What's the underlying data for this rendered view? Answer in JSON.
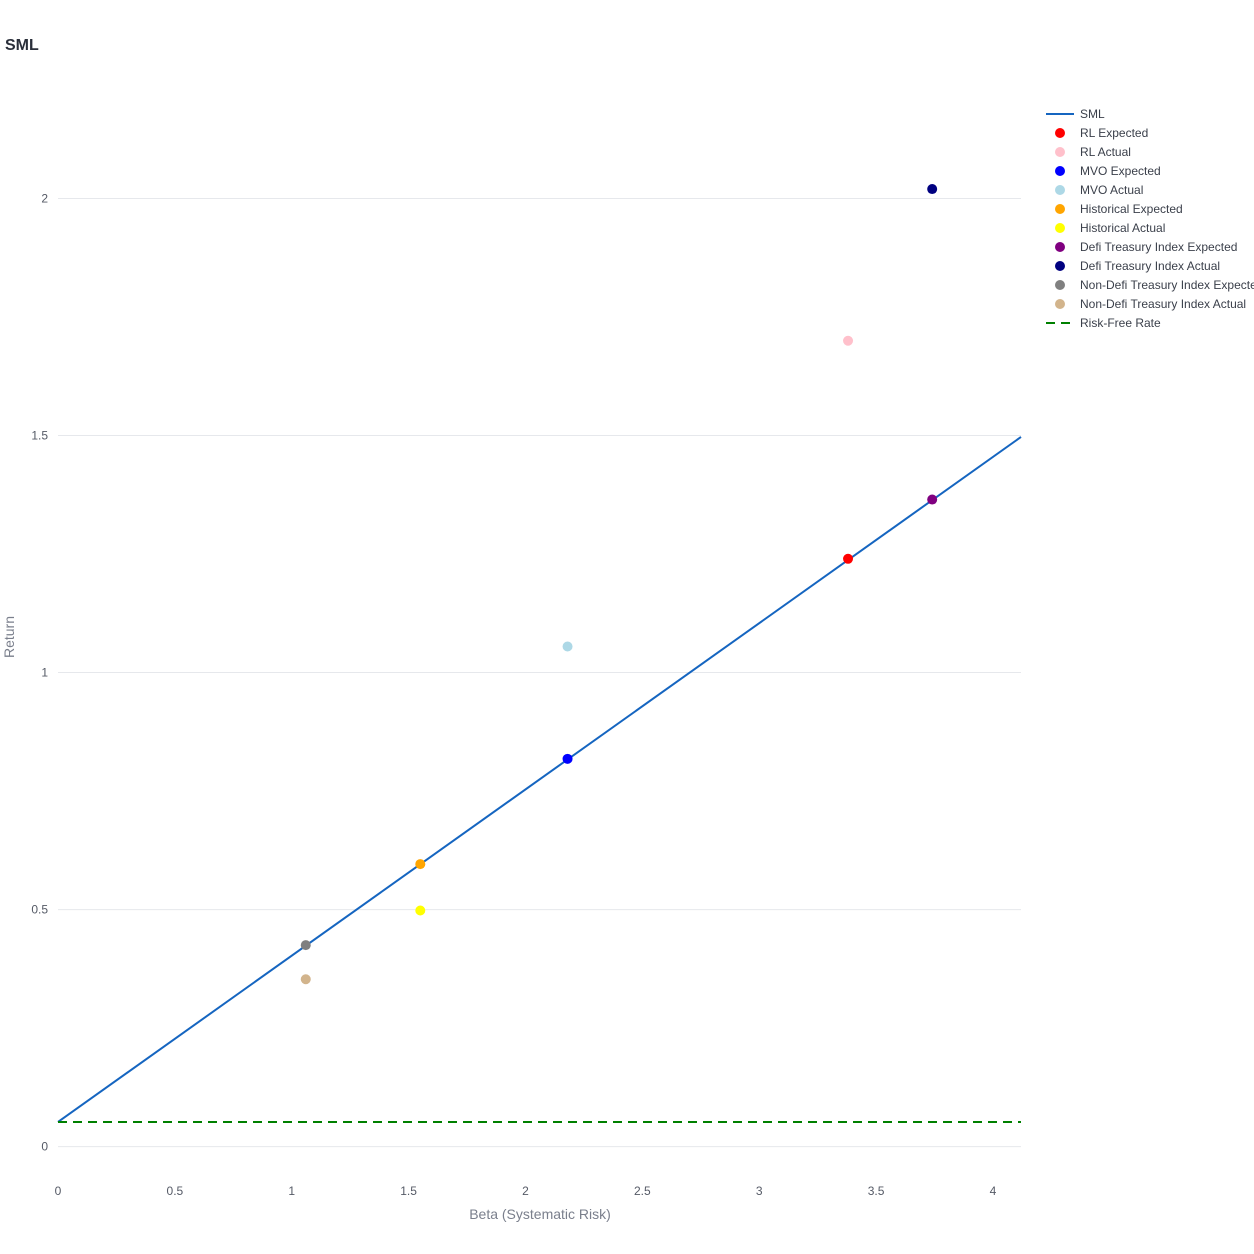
{
  "chart_data": {
    "type": "scatter",
    "title": "SML",
    "xlabel": "Beta (Systematic Risk)",
    "ylabel": "Return",
    "xlim": [
      0,
      4.12
    ],
    "ylim": [
      -0.1,
      2.25
    ],
    "x_ticks": [
      0,
      0.5,
      1,
      1.5,
      2,
      2.5,
      3,
      3.5,
      4
    ],
    "x_tick_labels": [
      "0",
      "0.5",
      "1",
      "1.5",
      "2",
      "2.5",
      "3",
      "3.5",
      "4"
    ],
    "y_ticks": [
      0,
      0.5,
      1,
      1.5,
      2
    ],
    "y_tick_labels": [
      "0",
      "0.5",
      "1",
      "1.5",
      "2"
    ],
    "grid": "horizontal",
    "legend_position": "right",
    "series": [
      {
        "name": "SML",
        "kind": "line",
        "color": "#1565c0",
        "x": [
          0,
          4.12
        ],
        "y": [
          0.052,
          1.497
        ]
      },
      {
        "name": "RL Expected",
        "kind": "marker",
        "color": "#ff0000",
        "x": [
          3.38
        ],
        "y": [
          1.24
        ]
      },
      {
        "name": "RL Actual",
        "kind": "marker",
        "color": "#ffc0cb",
        "x": [
          3.38
        ],
        "y": [
          1.7
        ]
      },
      {
        "name": "MVO Expected",
        "kind": "marker",
        "color": "#0000ff",
        "x": [
          2.18
        ],
        "y": [
          0.818
        ]
      },
      {
        "name": "MVO Actual",
        "kind": "marker",
        "color": "#add8e6",
        "x": [
          2.18
        ],
        "y": [
          1.055
        ]
      },
      {
        "name": "Historical Expected",
        "kind": "marker",
        "color": "#ffa500",
        "x": [
          1.55
        ],
        "y": [
          0.596
        ]
      },
      {
        "name": "Historical Actual",
        "kind": "marker",
        "color": "#ffff00",
        "x": [
          1.55
        ],
        "y": [
          0.498
        ]
      },
      {
        "name": "Defi Treasury Index Expected",
        "kind": "marker",
        "color": "#800080",
        "x": [
          3.74
        ],
        "y": [
          1.365
        ]
      },
      {
        "name": "Defi Treasury Index Actual",
        "kind": "marker",
        "color": "#000080",
        "x": [
          3.74
        ],
        "y": [
          2.02
        ]
      },
      {
        "name": "Non-Defi Treasury Index Expected",
        "kind": "marker",
        "color": "#808080",
        "x": [
          1.06
        ],
        "y": [
          0.425
        ]
      },
      {
        "name": "Non-Defi Treasury Index Actual",
        "kind": "marker",
        "color": "#d2b48c",
        "x": [
          1.06
        ],
        "y": [
          0.353
        ]
      },
      {
        "name": "Risk-Free Rate",
        "kind": "dash",
        "color": "#008000",
        "x": [
          0,
          4.12
        ],
        "y": [
          0.052,
          0.052
        ]
      }
    ]
  }
}
